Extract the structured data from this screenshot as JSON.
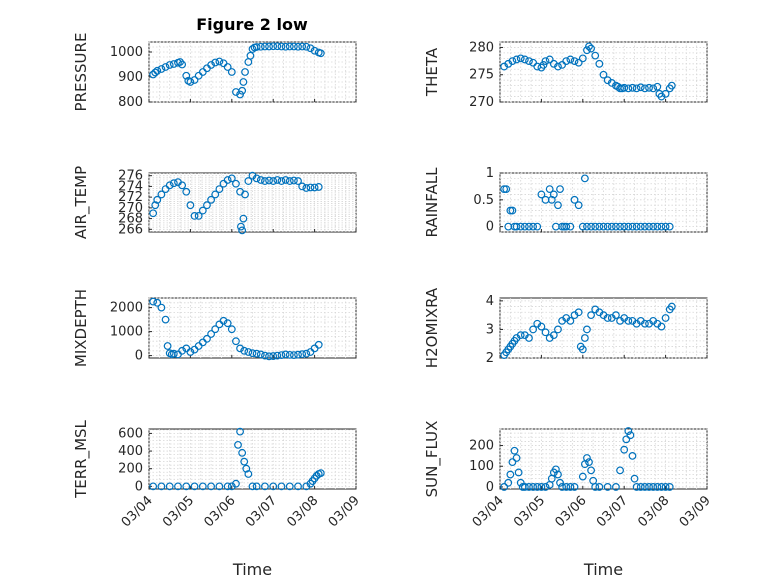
{
  "figure": {
    "title": "Figure 2 low",
    "x_label": "Time",
    "x_tick_labels": [
      "03/04",
      "03/05",
      "03/06",
      "03/07",
      "03/08",
      "03/09"
    ]
  },
  "chart_data": [
    {
      "type": "scatter",
      "name": "pressure",
      "ylabel": "PRESSURE",
      "ylim": [
        800,
        1040
      ],
      "yticks": [
        800,
        900,
        1000
      ],
      "xlim": [
        0,
        5
      ],
      "x": [
        0.1,
        0.15,
        0.2,
        0.3,
        0.4,
        0.5,
        0.6,
        0.7,
        0.75,
        0.8,
        0.9,
        0.95,
        1.0,
        1.1,
        1.2,
        1.3,
        1.4,
        1.5,
        1.6,
        1.7,
        1.8,
        1.9,
        2.0,
        2.1,
        2.2,
        2.25,
        2.28,
        2.32,
        2.4,
        2.45,
        2.5,
        2.55,
        2.6,
        2.7,
        2.8,
        2.9,
        3.0,
        3.1,
        3.2,
        3.3,
        3.4,
        3.5,
        3.6,
        3.7,
        3.8,
        3.9,
        4.0,
        4.1,
        4.15
      ],
      "values": [
        910,
        918,
        925,
        932,
        940,
        948,
        952,
        957,
        960,
        950,
        905,
        885,
        880,
        888,
        905,
        920,
        935,
        948,
        958,
        962,
        955,
        940,
        920,
        840,
        830,
        845,
        880,
        920,
        960,
        985,
        1012,
        1018,
        1020,
        1021,
        1022,
        1022,
        1023,
        1023,
        1022,
        1021,
        1022,
        1022,
        1021,
        1022,
        1021,
        1015,
        1005,
        998,
        995
      ]
    },
    {
      "type": "scatter",
      "name": "theta",
      "ylabel": "THETA",
      "ylim": [
        270,
        281
      ],
      "yticks": [
        270,
        275,
        280
      ],
      "xlim": [
        0,
        5
      ],
      "x": [
        0.1,
        0.2,
        0.3,
        0.4,
        0.5,
        0.6,
        0.7,
        0.8,
        0.9,
        1.0,
        1.05,
        1.1,
        1.2,
        1.3,
        1.4,
        1.5,
        1.6,
        1.7,
        1.8,
        1.9,
        2.0,
        2.1,
        2.15,
        2.2,
        2.3,
        2.4,
        2.5,
        2.6,
        2.7,
        2.8,
        2.85,
        2.9,
        2.95,
        3.0,
        3.1,
        3.2,
        3.3,
        3.4,
        3.5,
        3.6,
        3.7,
        3.8,
        3.85,
        3.9,
        4.0,
        4.1,
        4.15
      ],
      "values": [
        276.5,
        277.0,
        277.5,
        277.8,
        278.0,
        277.8,
        277.5,
        277.2,
        276.5,
        276.3,
        276.8,
        277.5,
        277.8,
        277.0,
        276.5,
        276.8,
        277.5,
        277.8,
        277.5,
        277.2,
        278.0,
        279.5,
        280.2,
        279.8,
        278.5,
        277.0,
        275.0,
        274.0,
        273.5,
        273.0,
        272.8,
        272.5,
        272.5,
        272.6,
        272.5,
        272.6,
        272.5,
        272.7,
        272.5,
        272.6,
        272.5,
        272.8,
        271.5,
        271.0,
        271.5,
        272.5,
        273.0
      ]
    },
    {
      "type": "scatter",
      "name": "air-temp",
      "ylabel": "AIR_TEMP",
      "ylim": [
        265.5,
        276.5
      ],
      "yticks": [
        266,
        268,
        270,
        272,
        274,
        276
      ],
      "xlim": [
        0,
        5
      ],
      "x": [
        0.1,
        0.15,
        0.2,
        0.3,
        0.4,
        0.5,
        0.6,
        0.7,
        0.8,
        0.9,
        1.0,
        1.1,
        1.2,
        1.3,
        1.4,
        1.5,
        1.6,
        1.7,
        1.8,
        1.9,
        2.0,
        2.1,
        2.2,
        2.22,
        2.25,
        2.28,
        2.32,
        2.4,
        2.5,
        2.6,
        2.7,
        2.8,
        2.9,
        3.0,
        3.1,
        3.2,
        3.3,
        3.4,
        3.5,
        3.6,
        3.7,
        3.8,
        3.9,
        4.0,
        4.1
      ],
      "values": [
        269.0,
        270.5,
        271.5,
        272.5,
        273.5,
        274.2,
        274.6,
        274.8,
        274.2,
        273.0,
        270.5,
        268.5,
        268.5,
        269.5,
        270.5,
        271.5,
        272.5,
        273.5,
        274.5,
        275.2,
        275.5,
        274.5,
        273.0,
        266.5,
        265.8,
        268.0,
        272.5,
        275.0,
        276.0,
        275.5,
        275.2,
        275.0,
        275.1,
        275.0,
        275.2,
        275.0,
        275.2,
        275.0,
        275.1,
        275.0,
        274.0,
        273.7,
        273.8,
        273.8,
        273.9
      ]
    },
    {
      "type": "scatter",
      "name": "rainfall",
      "ylabel": "RAINFALL",
      "ylim": [
        -0.1,
        1.0
      ],
      "yticks": [
        0,
        0.5,
        1
      ],
      "xlim": [
        0,
        5
      ],
      "x": [
        0.1,
        0.15,
        0.2,
        0.25,
        0.3,
        0.35,
        0.4,
        0.5,
        0.6,
        0.7,
        0.8,
        0.9,
        1.0,
        1.1,
        1.2,
        1.25,
        1.3,
        1.35,
        1.4,
        1.45,
        1.5,
        1.55,
        1.6,
        1.7,
        1.8,
        1.9,
        2.0,
        2.05,
        2.1,
        2.2,
        2.3,
        2.4,
        2.5,
        2.6,
        2.7,
        2.8,
        2.9,
        3.0,
        3.1,
        3.2,
        3.3,
        3.4,
        3.5,
        3.6,
        3.7,
        3.8,
        3.9,
        4.0,
        4.1
      ],
      "values": [
        0.7,
        0.7,
        0.0,
        0.3,
        0.3,
        0.0,
        0.0,
        0.0,
        0.0,
        0.0,
        0.0,
        0.0,
        0.6,
        0.5,
        0.7,
        0.5,
        0.6,
        0.0,
        0.4,
        0.7,
        0.0,
        0.0,
        0.0,
        0.0,
        0.5,
        0.4,
        0.0,
        0.9,
        0.0,
        0.0,
        0.0,
        0.0,
        0.0,
        0.0,
        0.0,
        0.0,
        0.0,
        0.0,
        0.0,
        0.0,
        0.0,
        0.0,
        0.0,
        0.0,
        0.0,
        0.0,
        0.0,
        0.0,
        0.0
      ]
    },
    {
      "type": "scatter",
      "name": "mixdepth",
      "ylabel": "MIXDEPTH",
      "ylim": [
        -100,
        2400
      ],
      "yticks": [
        0,
        1000,
        2000
      ],
      "xlim": [
        0,
        5
      ],
      "x": [
        0.1,
        0.2,
        0.3,
        0.4,
        0.45,
        0.5,
        0.55,
        0.6,
        0.7,
        0.8,
        0.9,
        1.0,
        1.1,
        1.2,
        1.3,
        1.4,
        1.5,
        1.6,
        1.7,
        1.8,
        1.9,
        2.0,
        2.1,
        2.2,
        2.3,
        2.4,
        2.5,
        2.6,
        2.7,
        2.8,
        2.9,
        3.0,
        3.1,
        3.2,
        3.3,
        3.4,
        3.5,
        3.6,
        3.7,
        3.8,
        3.9,
        4.0,
        4.1
      ],
      "values": [
        2250,
        2200,
        2000,
        1500,
        400,
        100,
        50,
        80,
        50,
        200,
        300,
        150,
        250,
        400,
        550,
        700,
        900,
        1100,
        1300,
        1450,
        1350,
        1100,
        600,
        300,
        200,
        150,
        100,
        80,
        50,
        0,
        -30,
        -20,
        0,
        20,
        50,
        30,
        20,
        40,
        60,
        80,
        150,
        300,
        450
      ]
    },
    {
      "type": "scatter",
      "name": "h2o-mixratio",
      "ylabel": "H2OMIXRA",
      "ylim": [
        2,
        4.1
      ],
      "yticks": [
        2,
        3,
        4
      ],
      "xlim": [
        0,
        5
      ],
      "x": [
        0.1,
        0.15,
        0.2,
        0.25,
        0.3,
        0.35,
        0.4,
        0.5,
        0.6,
        0.7,
        0.8,
        0.9,
        1.0,
        1.1,
        1.2,
        1.3,
        1.4,
        1.5,
        1.6,
        1.7,
        1.8,
        1.9,
        1.95,
        2.0,
        2.05,
        2.1,
        2.2,
        2.3,
        2.4,
        2.5,
        2.6,
        2.7,
        2.8,
        2.9,
        3.0,
        3.1,
        3.2,
        3.3,
        3.4,
        3.5,
        3.6,
        3.7,
        3.8,
        3.9,
        4.0,
        4.1,
        4.15
      ],
      "values": [
        2.1,
        2.2,
        2.3,
        2.4,
        2.5,
        2.6,
        2.7,
        2.8,
        2.8,
        2.7,
        3.0,
        3.2,
        3.1,
        2.9,
        2.7,
        2.8,
        3.0,
        3.3,
        3.4,
        3.3,
        3.5,
        3.6,
        2.4,
        2.3,
        2.7,
        3.0,
        3.5,
        3.7,
        3.6,
        3.5,
        3.4,
        3.4,
        3.5,
        3.3,
        3.4,
        3.3,
        3.3,
        3.2,
        3.3,
        3.2,
        3.2,
        3.3,
        3.2,
        3.1,
        3.4,
        3.7,
        3.8
      ]
    },
    {
      "type": "scatter",
      "name": "terr-msl",
      "ylabel": "TERR_MSL",
      "ylim": [
        -30,
        650
      ],
      "yticks": [
        0,
        200,
        400,
        600
      ],
      "xlim": [
        0,
        5
      ],
      "x": [
        0.1,
        0.3,
        0.5,
        0.7,
        0.9,
        1.1,
        1.3,
        1.5,
        1.7,
        1.9,
        2.0,
        2.1,
        2.15,
        2.2,
        2.25,
        2.3,
        2.35,
        2.4,
        2.5,
        2.6,
        2.8,
        3.0,
        3.2,
        3.4,
        3.6,
        3.8,
        3.9,
        3.95,
        4.0,
        4.05,
        4.1,
        4.15
      ],
      "values": [
        0,
        0,
        0,
        0,
        0,
        0,
        0,
        0,
        0,
        0,
        0,
        30,
        470,
        620,
        380,
        280,
        200,
        140,
        0,
        0,
        0,
        0,
        0,
        0,
        0,
        0,
        30,
        60,
        90,
        120,
        140,
        150
      ]
    },
    {
      "type": "scatter",
      "name": "sun-flux",
      "ylabel": "SUN_FLUX",
      "ylim": [
        -10,
        280
      ],
      "yticks": [
        0,
        100,
        200
      ],
      "xlim": [
        0,
        5
      ],
      "x": [
        0.1,
        0.2,
        0.25,
        0.3,
        0.35,
        0.4,
        0.45,
        0.5,
        0.55,
        0.6,
        0.7,
        0.8,
        0.9,
        1.0,
        1.1,
        1.2,
        1.25,
        1.3,
        1.35,
        1.4,
        1.45,
        1.5,
        1.6,
        1.7,
        1.8,
        2.0,
        2.05,
        2.1,
        2.15,
        2.2,
        2.25,
        2.3,
        2.4,
        2.6,
        2.8,
        2.9,
        3.0,
        3.05,
        3.1,
        3.15,
        3.2,
        3.25,
        3.3,
        3.4,
        3.5,
        3.6,
        3.7,
        3.8,
        3.9,
        4.0,
        4.1
      ],
      "values": [
        0,
        20,
        60,
        120,
        175,
        140,
        70,
        20,
        0,
        0,
        0,
        0,
        0,
        0,
        0,
        10,
        40,
        70,
        85,
        60,
        20,
        0,
        0,
        0,
        0,
        50,
        110,
        140,
        120,
        80,
        30,
        0,
        0,
        0,
        0,
        80,
        180,
        230,
        270,
        250,
        150,
        40,
        0,
        0,
        0,
        0,
        0,
        0,
        0,
        0,
        0
      ]
    }
  ]
}
